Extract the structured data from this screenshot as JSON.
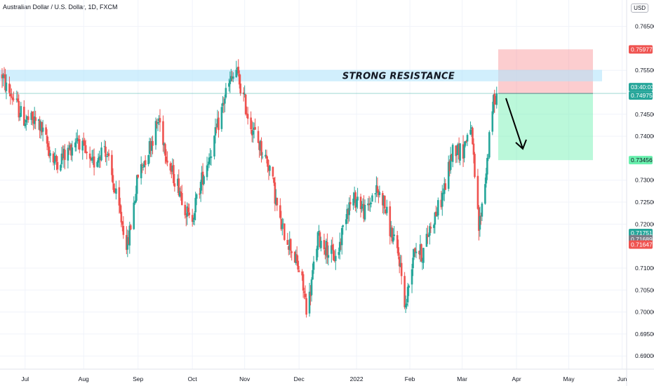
{
  "header": {
    "title": "Australian Dollar / U.S. Dollar, 1D, FXCM",
    "currency": "USD"
  },
  "chart_data": {
    "type": "candlestick",
    "symbol": "AUD/USD",
    "timeframe": "1D",
    "ylim": [
      0.687,
      0.771
    ],
    "y_ticks": [
      "0.76500",
      "0.75500",
      "0.74500",
      "0.74000",
      "0.73000",
      "0.72500",
      "0.72000",
      "0.71000",
      "0.70500",
      "0.70000",
      "0.69500",
      "0.69000"
    ],
    "x_ticks": [
      "Jul",
      "Aug",
      "Sep",
      "Oct",
      "Nov",
      "Dec",
      "2022",
      "Feb",
      "Mar",
      "Apr",
      "May",
      "Jun"
    ],
    "price_tags": [
      {
        "label": "0.75977",
        "color": "#ef5350"
      },
      {
        "label": "03:40:03",
        "color": "#26a69a"
      },
      {
        "label": "0.74975",
        "color": "#26a69a"
      },
      {
        "label": "0.73456",
        "color": "#69f0ae",
        "text_color": "#131722"
      },
      {
        "label": "0.71751",
        "color": "#26a69a"
      },
      {
        "label": "0.71689",
        "color": "#787b86"
      },
      {
        "label": "0.71647",
        "color": "#ef5350"
      }
    ],
    "annotations": {
      "resistance_label": "STRONG RESISTANCE",
      "resistance_zone": [
        0.7525,
        0.7551
      ],
      "stop_zone": [
        0.74975,
        0.75977
      ],
      "target_zone": [
        0.73456,
        0.74975
      ]
    },
    "waypoints": [
      [
        0,
        0.754
      ],
      [
        4,
        0.751
      ],
      [
        10,
        0.749
      ],
      [
        20,
        0.744
      ],
      [
        35,
        0.743
      ],
      [
        50,
        0.734
      ],
      [
        62,
        0.736
      ],
      [
        72,
        0.74
      ],
      [
        85,
        0.733
      ],
      [
        98,
        0.738
      ],
      [
        110,
        0.725
      ],
      [
        120,
        0.715
      ],
      [
        130,
        0.731
      ],
      [
        140,
        0.737
      ],
      [
        150,
        0.744
      ],
      [
        160,
        0.733
      ],
      [
        170,
        0.728
      ],
      [
        180,
        0.72
      ],
      [
        192,
        0.731
      ],
      [
        204,
        0.74
      ],
      [
        214,
        0.75
      ],
      [
        224,
        0.755
      ],
      [
        236,
        0.744
      ],
      [
        246,
        0.738
      ],
      [
        256,
        0.733
      ],
      [
        266,
        0.72
      ],
      [
        276,
        0.715
      ],
      [
        286,
        0.708
      ],
      [
        292,
        0.7
      ],
      [
        302,
        0.717
      ],
      [
        312,
        0.714
      ],
      [
        320,
        0.712
      ],
      [
        330,
        0.724
      ],
      [
        340,
        0.726
      ],
      [
        348,
        0.722
      ],
      [
        356,
        0.728
      ],
      [
        364,
        0.726
      ],
      [
        372,
        0.718
      ],
      [
        380,
        0.712
      ],
      [
        386,
        0.701
      ],
      [
        394,
        0.715
      ],
      [
        402,
        0.713
      ],
      [
        410,
        0.72
      ],
      [
        418,
        0.724
      ],
      [
        424,
        0.729
      ],
      [
        432,
        0.738
      ],
      [
        440,
        0.736
      ],
      [
        448,
        0.743
      ],
      [
        456,
        0.719
      ],
      [
        462,
        0.73
      ],
      [
        470,
        0.748
      ],
      [
        473,
        0.7498
      ]
    ]
  }
}
